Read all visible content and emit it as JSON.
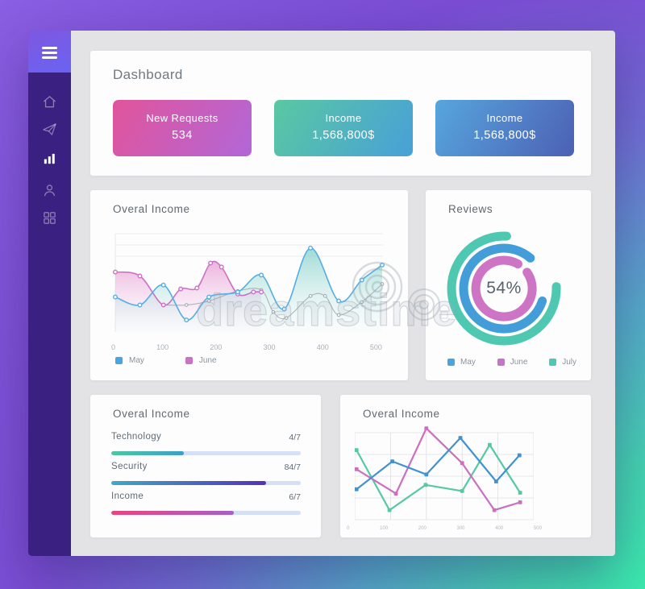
{
  "sidebar": {
    "menu_label": "menu",
    "items": [
      {
        "id": "home",
        "active": false
      },
      {
        "id": "send",
        "active": false
      },
      {
        "id": "stats",
        "active": true
      },
      {
        "id": "user",
        "active": false
      },
      {
        "id": "apps",
        "active": false
      }
    ]
  },
  "header": {
    "title": "Dashboard",
    "cards": [
      {
        "label": "New Requests",
        "value": "534",
        "gradient": [
          "#e1549b",
          "#b267d8"
        ]
      },
      {
        "label": "Income",
        "value": "1,568,800$",
        "gradient": [
          "#5ac8a2",
          "#48a0d8"
        ]
      },
      {
        "label": "Income",
        "value": "1,568,800$",
        "gradient": [
          "#56a6de",
          "#4d60b4"
        ]
      }
    ]
  },
  "area_panel": {
    "title": "Overal Income",
    "x_ticks": [
      "0",
      "100",
      "200",
      "300",
      "400",
      "500"
    ],
    "legend": [
      {
        "label": "May",
        "color": "#49a5e2"
      },
      {
        "label": "June",
        "color": "#c873c8"
      }
    ],
    "chart_data": {
      "type": "area",
      "x_range": [
        0,
        510
      ],
      "y_range": [
        0,
        100
      ],
      "grid": "horizontal-top-3",
      "series": [
        {
          "name": "June",
          "color": "#cb71c4",
          "fill_top": "rgba(233,166,216,0.85)",
          "fill_bottom": "rgba(247,225,240,0.03)",
          "x": [
            0,
            47,
            92,
            125,
            156,
            182,
            203,
            234,
            264,
            279
          ],
          "y": [
            60,
            56,
            27,
            43,
            44,
            69,
            65,
            38,
            40,
            40
          ]
        },
        {
          "name": "May",
          "color": "#54aee4",
          "fill_top": "rgba(118,204,194,0.70)",
          "fill_bottom": "rgba(206,238,233,0.05)",
          "x": [
            0,
            47,
            92,
            136,
            179,
            234,
            279,
            323,
            373,
            427,
            471,
            510
          ],
          "y": [
            35,
            27,
            47,
            12,
            35,
            40,
            57,
            23,
            84,
            31,
            52,
            67
          ]
        },
        {
          "name": "trend",
          "color": "#9aa4ae",
          "fill_top": null,
          "fill_bottom": null,
          "x": [
            92,
            136,
            179,
            234,
            279,
            302,
            327,
            373,
            401,
            427,
            471,
            510
          ],
          "y": [
            27,
            27,
            31,
            41,
            42,
            20,
            14,
            36,
            36,
            17,
            30,
            48
          ]
        }
      ]
    }
  },
  "reviews_panel": {
    "title": "Reviews",
    "center_value": "54%",
    "legend": [
      {
        "label": "May",
        "color": "#49a5e2"
      },
      {
        "label": "June",
        "color": "#c873c8"
      },
      {
        "label": "July",
        "color": "#4fc8b2"
      }
    ],
    "chart_data": {
      "type": "donut-rings",
      "center_value": "54%",
      "rings": [
        {
          "name": "July",
          "color": "#4fc8b2",
          "radius": 65,
          "start_deg": 88,
          "sweep_deg": 275,
          "stroke": 11
        },
        {
          "name": "May",
          "color": "#429dd9",
          "radius": 50,
          "start_deg": 108,
          "sweep_deg": 293,
          "stroke": 11
        },
        {
          "name": "June",
          "color": "#cd74c5",
          "radius": 35,
          "start_deg": 55,
          "sweep_deg": 335,
          "stroke": 11
        }
      ]
    }
  },
  "bars_panel": {
    "title": "Overal Income",
    "chart_data": {
      "type": "bar",
      "track_color": "#d4e0f6",
      "rows": [
        {
          "label": "Technology",
          "value": "4/7",
          "percent": 38.5,
          "gradient": [
            "#4fc6a0",
            "#3c9fc9"
          ]
        },
        {
          "label": "Security",
          "value": "84/7",
          "percent": 81.5,
          "gradient": [
            "#3fa9c4",
            "#5531b6"
          ]
        },
        {
          "label": "Income",
          "value": "6/7",
          "percent": 64.5,
          "gradient": [
            "#e8457f",
            "#a85fc9"
          ]
        }
      ]
    }
  },
  "lines_panel": {
    "title": "Overal Income",
    "x_ticks": [
      "0",
      "100",
      "200",
      "300",
      "400",
      "500"
    ],
    "chart_data": {
      "type": "line",
      "x_range": [
        0,
        500
      ],
      "y_range": [
        0,
        100
      ],
      "grid": true,
      "series": [
        {
          "name": "teal",
          "color": "#53c9a4",
          "x": [
            5,
            97,
            198,
            300,
            377,
            462
          ],
          "y": [
            80,
            11,
            40,
            33,
            86,
            31
          ]
        },
        {
          "name": "pink",
          "color": "#cb6fc0",
          "x": [
            5,
            115,
            200,
            300,
            390,
            462
          ],
          "y": [
            58,
            30,
            105,
            65,
            11,
            20
          ]
        },
        {
          "name": "blue",
          "color": "#4292cf",
          "x": [
            5,
            105,
            200,
            295,
            395,
            460
          ],
          "y": [
            35,
            67,
            52,
            94,
            44,
            74
          ]
        }
      ]
    }
  },
  "watermark": {
    "text": "dreamstime"
  }
}
